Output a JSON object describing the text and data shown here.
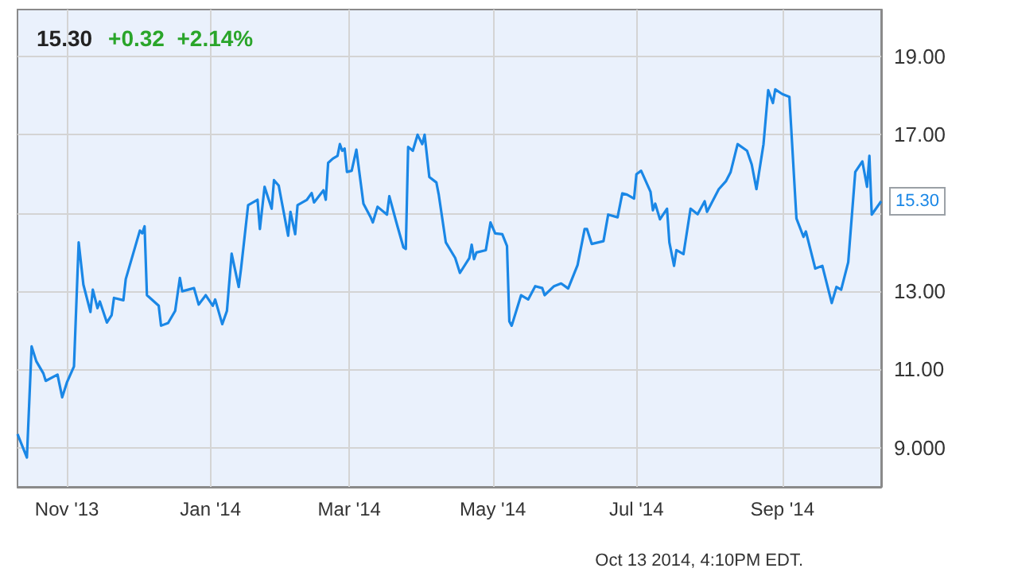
{
  "chart_data": {
    "type": "line",
    "title": "15.30",
    "subtitle": "+0.32  +2.14%",
    "x": [
      "2013-10-11",
      "2013-10-15",
      "2013-10-17",
      "2013-10-19",
      "2013-10-22",
      "2013-10-23",
      "2013-10-28",
      "2013-10-30",
      "2013-11-01",
      "2013-11-04",
      "2013-11-06",
      "2013-11-08",
      "2013-11-11",
      "2013-11-12",
      "2013-11-14",
      "2013-11-15",
      "2013-11-18",
      "2013-11-20",
      "2013-11-21",
      "2013-11-25",
      "2013-11-26",
      "2013-12-02",
      "2013-12-03",
      "2013-12-04",
      "2013-12-05",
      "2013-12-10",
      "2013-12-11",
      "2013-12-14",
      "2013-12-17",
      "2013-12-19",
      "2013-12-20",
      "2013-12-25",
      "2013-12-27",
      "2013-12-30",
      "2014-01-02",
      "2014-01-03",
      "2014-01-06",
      "2014-01-08",
      "2014-01-10",
      "2014-01-13",
      "2014-01-14",
      "2014-01-17",
      "2014-01-21",
      "2014-01-22",
      "2014-01-24",
      "2014-01-27",
      "2014-01-28",
      "2014-01-30",
      "2014-02-03",
      "2014-02-04",
      "2014-02-06",
      "2014-02-07",
      "2014-02-11",
      "2014-02-13",
      "2014-02-14",
      "2014-02-18",
      "2014-02-19",
      "2014-02-20",
      "2014-02-22",
      "2014-02-24",
      "2014-02-25",
      "2014-02-26",
      "2014-02-27",
      "2014-02-28",
      "2014-03-02",
      "2014-03-04",
      "2014-03-07",
      "2014-03-10",
      "2014-03-11",
      "2014-03-13",
      "2014-03-17",
      "2014-03-18",
      "2014-03-21",
      "2014-03-24",
      "2014-03-25",
      "2014-03-26",
      "2014-03-28",
      "2014-03-30",
      "2014-04-01",
      "2014-04-02",
      "2014-04-04",
      "2014-04-07",
      "2014-04-08",
      "2014-04-11",
      "2014-04-15",
      "2014-04-17",
      "2014-04-21",
      "2014-04-22",
      "2014-04-23",
      "2014-04-24",
      "2014-04-28",
      "2014-04-30",
      "2014-05-02",
      "2014-05-05",
      "2014-05-07",
      "2014-05-08",
      "2014-05-09",
      "2014-05-13",
      "2014-05-16",
      "2014-05-19",
      "2014-05-22",
      "2014-05-23",
      "2014-05-27",
      "2014-05-30",
      "2014-06-02",
      "2014-06-06",
      "2014-06-09",
      "2014-06-10",
      "2014-06-12",
      "2014-06-17",
      "2014-06-19",
      "2014-06-23",
      "2014-06-25",
      "2014-06-27",
      "2014-06-30",
      "2014-07-01",
      "2014-07-03",
      "2014-07-07",
      "2014-07-08",
      "2014-07-09",
      "2014-07-11",
      "2014-07-14",
      "2014-07-15",
      "2014-07-17",
      "2014-07-18",
      "2014-07-21",
      "2014-07-24",
      "2014-07-27",
      "2014-07-30",
      "2014-07-31",
      "2014-08-05",
      "2014-08-08",
      "2014-08-10",
      "2014-08-13",
      "2014-08-17",
      "2014-08-19",
      "2014-08-21",
      "2014-08-24",
      "2014-08-26",
      "2014-08-28",
      "2014-08-29",
      "2014-09-01",
      "2014-09-04",
      "2014-09-07",
      "2014-09-10",
      "2014-09-11",
      "2014-09-15",
      "2014-09-18",
      "2014-09-22",
      "2014-09-24",
      "2014-09-26",
      "2014-09-29",
      "2014-10-02",
      "2014-10-05",
      "2014-10-07",
      "2014-10-08",
      "2014-10-09",
      "2014-10-13"
    ],
    "series": [
      {
        "color": "#1a87e6",
        "values": [
          9.35,
          8.75,
          11.59,
          11.21,
          10.9,
          10.71,
          10.87,
          10.29,
          10.67,
          11.08,
          14.25,
          13.17,
          12.47,
          13.04,
          12.57,
          12.74,
          12.2,
          12.39,
          12.83,
          12.77,
          13.31,
          14.55,
          14.48,
          14.66,
          12.9,
          12.63,
          12.12,
          12.19,
          12.5,
          13.34,
          13.0,
          13.08,
          12.66,
          12.9,
          12.63,
          12.79,
          12.16,
          12.5,
          13.96,
          13.11,
          13.58,
          15.2,
          15.34,
          14.59,
          15.67,
          15.11,
          15.84,
          15.7,
          14.42,
          15.03,
          14.46,
          15.2,
          15.34,
          15.51,
          15.27,
          15.58,
          15.34,
          16.28,
          16.39,
          16.46,
          16.76,
          16.59,
          16.65,
          16.05,
          16.08,
          16.62,
          15.24,
          14.9,
          14.76,
          15.16,
          14.96,
          15.43,
          14.76,
          14.12,
          14.08,
          16.69,
          16.59,
          17.0,
          16.76,
          17.0,
          15.92,
          15.78,
          15.47,
          14.25,
          13.85,
          13.47,
          13.85,
          14.19,
          13.82,
          13.99,
          14.05,
          14.76,
          14.48,
          14.46,
          14.16,
          12.23,
          12.12,
          12.9,
          12.79,
          13.13,
          13.08,
          12.9,
          13.13,
          13.2,
          13.07,
          13.67,
          14.59,
          14.59,
          14.21,
          14.28,
          14.96,
          14.89,
          15.5,
          15.47,
          15.37,
          15.99,
          16.08,
          15.54,
          15.07,
          15.24,
          14.84,
          15.11,
          14.25,
          13.65,
          14.05,
          13.95,
          15.11,
          14.97,
          15.3,
          15.03,
          15.61,
          15.81,
          16.04,
          16.76,
          16.59,
          16.24,
          15.61,
          16.76,
          18.14,
          17.81,
          18.16,
          18.04,
          17.97,
          14.86,
          14.39,
          14.53,
          13.58,
          13.65,
          12.7,
          13.11,
          13.04,
          13.74,
          16.05,
          16.32,
          15.67,
          16.46,
          14.96,
          15.3
        ]
      }
    ],
    "xlim": [
      "2013-10-11",
      "2014-10-13"
    ],
    "xticks": [
      {
        "value": "2013-11-01",
        "label": "Nov '13"
      },
      {
        "value": "2014-01-01",
        "label": "Jan '14"
      },
      {
        "value": "2014-03-01",
        "label": "Mar '14"
      },
      {
        "value": "2014-05-01",
        "label": "May '14"
      },
      {
        "value": "2014-07-01",
        "label": "Jul '14"
      },
      {
        "value": "2014-09-01",
        "label": "Sep '14"
      }
    ],
    "ylim": [
      8,
      20.2
    ],
    "yticks": [
      {
        "value": 9,
        "label": "9.000"
      },
      {
        "value": 11,
        "label": "11.00"
      },
      {
        "value": 13,
        "label": "13.00"
      },
      {
        "value": 15,
        "label": null
      },
      {
        "value": 17,
        "label": "17.00"
      },
      {
        "value": 19,
        "label": "19.00"
      }
    ],
    "grid": true,
    "marker": "none",
    "line_style": "solid",
    "annotations": [
      {
        "text": "15.30",
        "x": "2014-10-13",
        "y": 15.3
      },
      "Oct 13 2014, 4:10PM EDT."
    ]
  }
}
